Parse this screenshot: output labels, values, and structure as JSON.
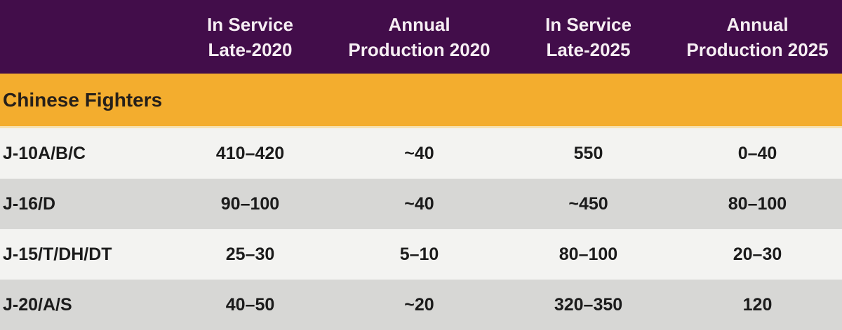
{
  "header": {
    "columns": [
      {
        "line1": "In Service",
        "line2": "Late-2020"
      },
      {
        "line1": "Annual",
        "line2": "Production 2020"
      },
      {
        "line1": "In Service",
        "line2": "Late-2025"
      },
      {
        "line1": "Annual",
        "line2": "Production 2025"
      }
    ]
  },
  "section": {
    "title": "Chinese Fighters"
  },
  "colors": {
    "header_bg": "#420d4a",
    "header_text": "#f6eef3",
    "section_bg": "#f3ad2e",
    "section_text": "#26201a",
    "row_light": "#f3f3f1",
    "row_dark": "#d7d7d5",
    "body_text": "#1b1b1b"
  },
  "chart_data": {
    "type": "table",
    "columns": [
      "",
      "In Service Late-2020",
      "Annual Production 2020",
      "In Service Late-2025",
      "Annual Production 2025"
    ],
    "section": "Chinese Fighters",
    "rows": [
      [
        "J-10A/B/C",
        "410–420",
        "~40",
        "550",
        "0–40"
      ],
      [
        "J-16/D",
        "90–100",
        "~40",
        "~450",
        "80–100"
      ],
      [
        "J-15/T/DH/DT",
        "25–30",
        "5–10",
        "80–100",
        "20–30"
      ],
      [
        "J-20/A/S",
        "40–50",
        "~20",
        "320–350",
        "120"
      ]
    ]
  }
}
